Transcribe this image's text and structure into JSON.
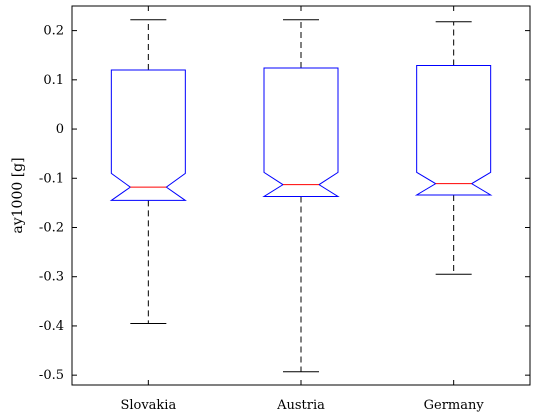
{
  "chart_data": {
    "type": "boxplot",
    "notched": true,
    "title": "",
    "xlabel": "",
    "ylabel": "ay1000 [g]",
    "ylim": [
      -0.52,
      0.25
    ],
    "yticks": [
      0.2,
      0.1,
      0,
      -0.1,
      -0.2,
      -0.3,
      -0.4,
      -0.5
    ],
    "ytick_labels": [
      "0.2",
      "0.1",
      "0",
      "-0.1",
      "-0.2",
      "-0.3",
      "-0.4",
      "-0.5"
    ],
    "grid": false,
    "categories": [
      "Slovakia",
      "Austria",
      "Germany"
    ],
    "boxes": [
      {
        "name": "Slovakia",
        "whisker_low": -0.395,
        "q1": -0.145,
        "median": -0.118,
        "q3": 0.12,
        "whisker_high": 0.222,
        "notch_low": -0.145,
        "notch_high": -0.09
      },
      {
        "name": "Austria",
        "whisker_low": -0.493,
        "q1": -0.137,
        "median": -0.113,
        "q3": 0.124,
        "whisker_high": 0.222,
        "notch_low": -0.137,
        "notch_high": -0.088
      },
      {
        "name": "Germany",
        "whisker_low": -0.295,
        "q1": -0.134,
        "median": -0.111,
        "q3": 0.129,
        "whisker_high": 0.218,
        "notch_low": -0.134,
        "notch_high": -0.088
      }
    ],
    "colors": {
      "box": "#0000ff",
      "median": "#ff0000",
      "whisker": "#000000",
      "axes": "#000000"
    }
  }
}
